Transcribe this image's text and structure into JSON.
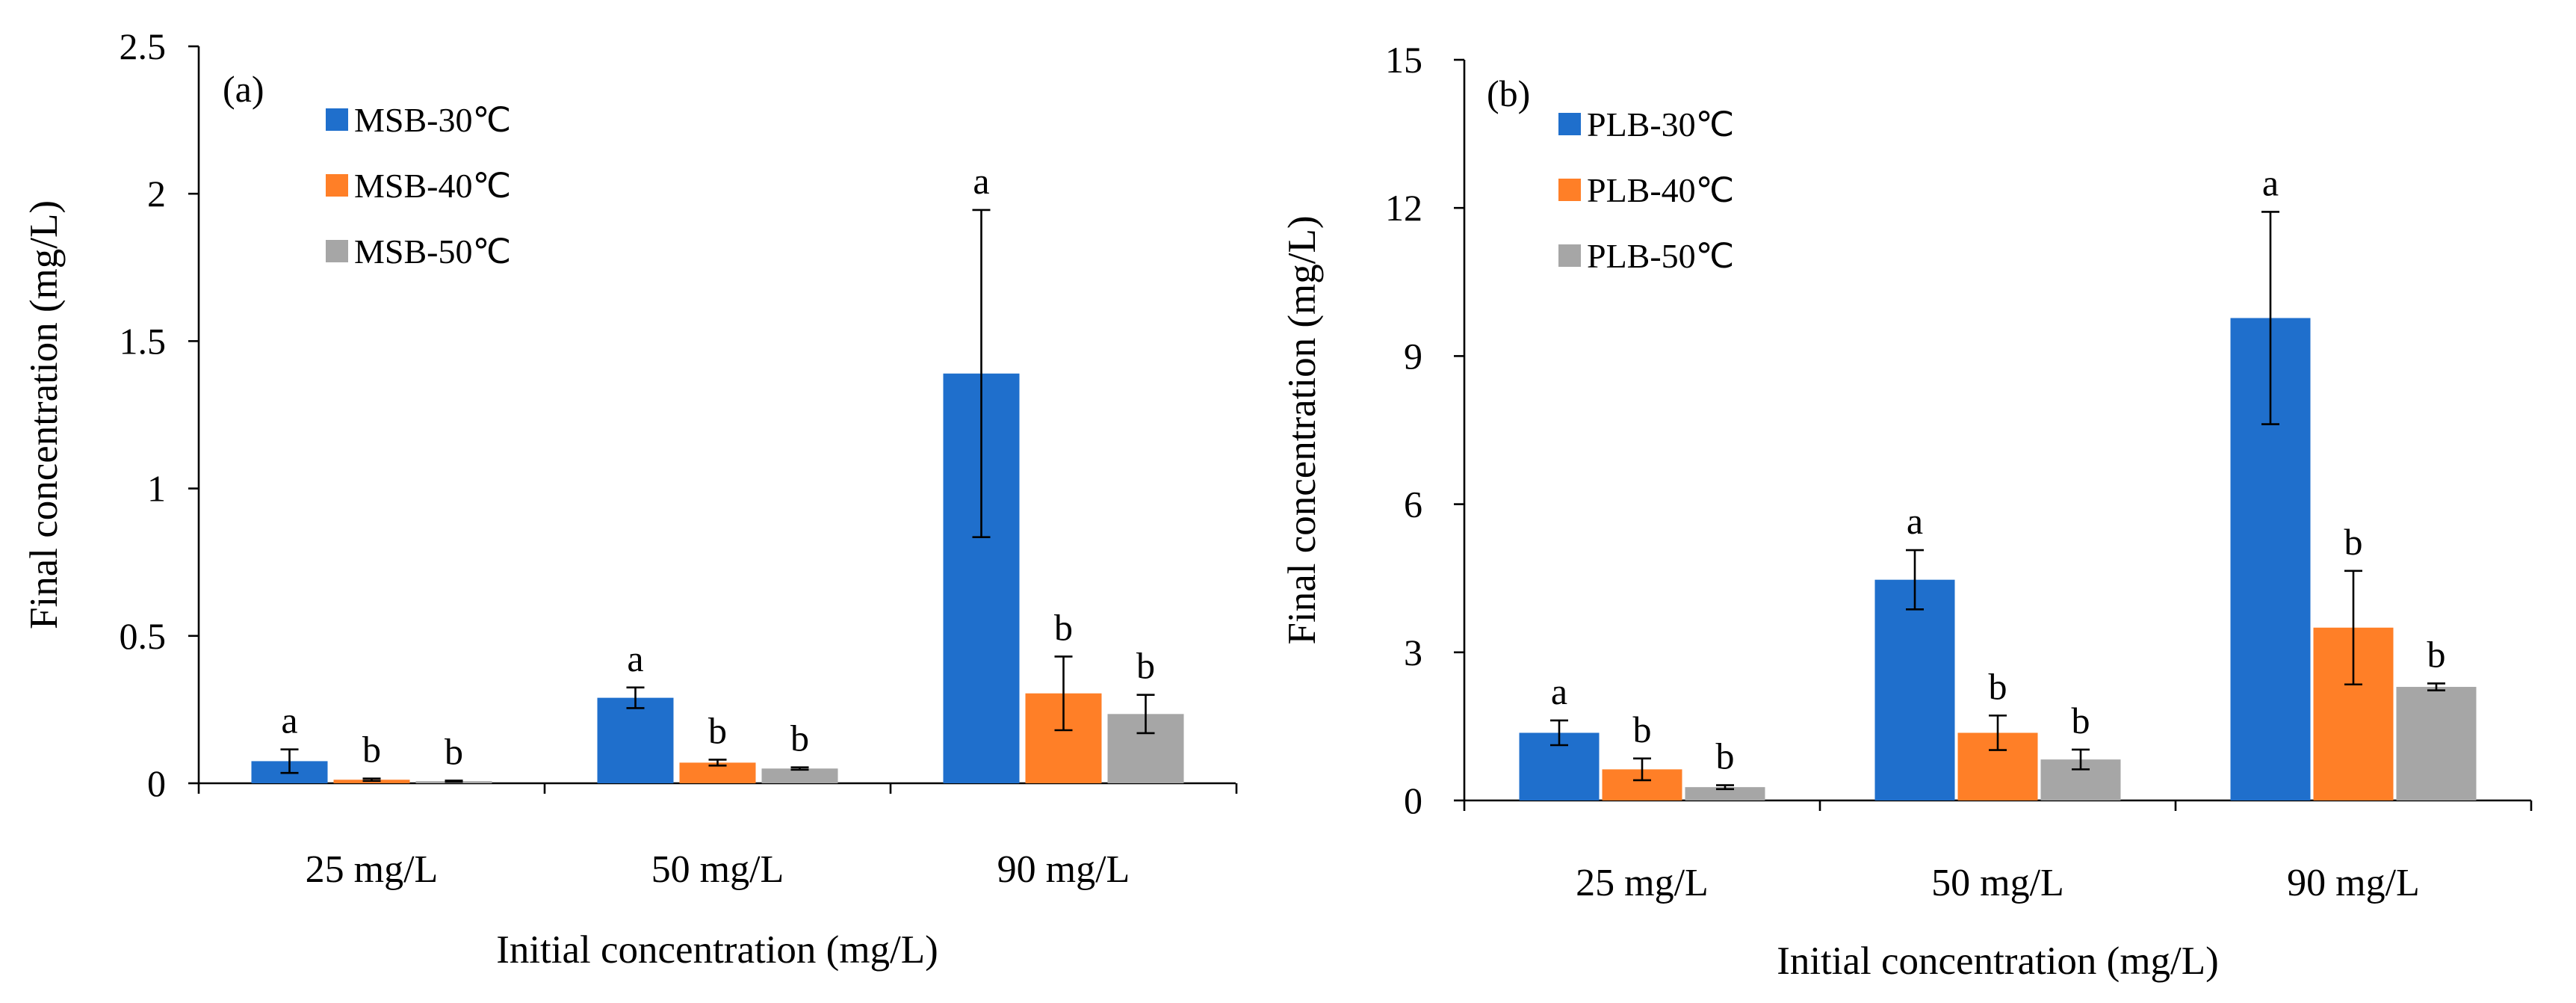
{
  "figure": {
    "panels": [
      "a",
      "b"
    ]
  },
  "chart_data": [
    {
      "type": "bar",
      "panel_label": "(a)",
      "title": "",
      "xlabel": "Initial  concentration (mg/L)",
      "ylabel": "Final concentration (mg/L)",
      "categories": [
        "25 mg/L",
        "50 mg/L",
        "90 mg/L"
      ],
      "ylim": [
        0,
        2.5
      ],
      "yticks": [
        0,
        0.5,
        1,
        1.5,
        2,
        2.5
      ],
      "ytick_labels": [
        "0",
        "0.5",
        "1",
        "1.5",
        "2",
        "2.5"
      ],
      "legend_position": "top-left",
      "grid": false,
      "series": [
        {
          "name": "MSB-30℃",
          "color": "#1F6FCC",
          "values": [
            0.075,
            0.29,
            1.39
          ],
          "errors": [
            0.04,
            0.035,
            0.555
          ],
          "letters": [
            "a",
            "a",
            "a"
          ]
        },
        {
          "name": "MSB-40℃",
          "color": "#FF7F27",
          "values": [
            0.012,
            0.07,
            0.305
          ],
          "errors": [
            0.004,
            0.01,
            0.125
          ],
          "letters": [
            "b",
            "b",
            "b"
          ]
        },
        {
          "name": "MSB-50℃",
          "color": "#A6A6A6",
          "values": [
            0.007,
            0.05,
            0.235
          ],
          "errors": [
            0.002,
            0.004,
            0.065
          ],
          "letters": [
            "b",
            "b",
            "b"
          ]
        }
      ]
    },
    {
      "type": "bar",
      "panel_label": "(b)",
      "title": "",
      "xlabel": "Initial concentration (mg/L)",
      "ylabel": "Final concentration (mg/L)",
      "categories": [
        "25 mg/L",
        "50 mg/L",
        "90 mg/L"
      ],
      "ylim": [
        0,
        15
      ],
      "yticks": [
        0,
        3,
        6,
        9,
        12,
        15
      ],
      "ytick_labels": [
        "0",
        "3",
        "6",
        "9",
        "12",
        "15"
      ],
      "legend_position": "top-left",
      "grid": false,
      "series": [
        {
          "name": "PLB-30℃",
          "color": "#1F6FCC",
          "values": [
            1.37,
            4.47,
            9.77
          ],
          "errors": [
            0.25,
            0.6,
            2.15
          ],
          "letters": [
            "a",
            "a",
            "a"
          ]
        },
        {
          "name": "PLB-40℃",
          "color": "#FF7F27",
          "values": [
            0.63,
            1.37,
            3.5
          ],
          "errors": [
            0.22,
            0.35,
            1.15
          ],
          "letters": [
            "b",
            "b",
            "b"
          ]
        },
        {
          "name": "PLB-50℃",
          "color": "#A6A6A6",
          "values": [
            0.27,
            0.83,
            2.3
          ],
          "errors": [
            0.04,
            0.2,
            0.07
          ],
          "letters": [
            "b",
            "b",
            "b"
          ]
        }
      ]
    }
  ]
}
